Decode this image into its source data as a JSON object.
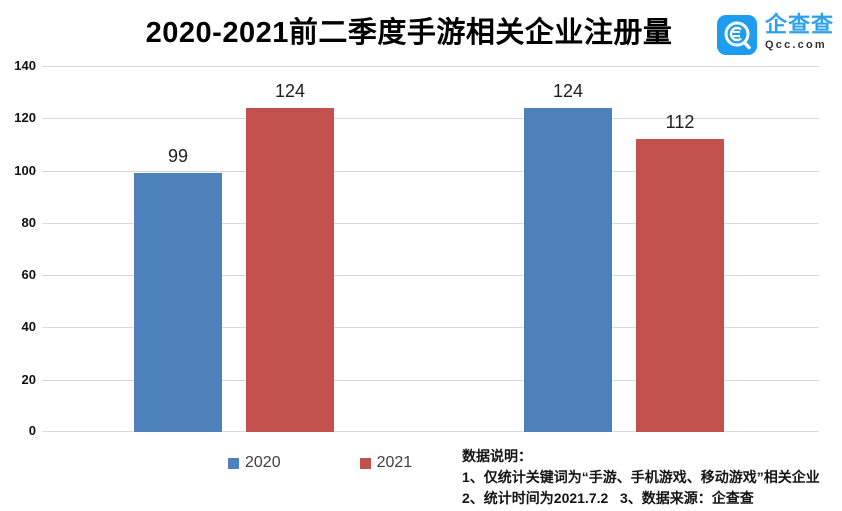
{
  "title": "2020-2021前二季度手游相关企业注册量",
  "logo": {
    "name": "企查查",
    "domain": "Qcc.com",
    "icon": "qcc-logo-icon",
    "brand_color": "#1E9CF0"
  },
  "chart_data": {
    "type": "bar",
    "categories": [
      "",
      ""
    ],
    "series": [
      {
        "name": "2020",
        "color": "#4E81BC",
        "values": [
          99,
          124
        ]
      },
      {
        "name": "2021",
        "color": "#C2514E",
        "values": [
          124,
          112
        ]
      }
    ],
    "title": "2020-2021前二季度手游相关企业注册量",
    "xlabel": "",
    "ylabel": "",
    "ylim": [
      0,
      140
    ],
    "ytick_step": 20,
    "yticks": [
      0,
      20,
      40,
      60,
      80,
      100,
      120,
      140
    ],
    "grid": true,
    "gridline_color": "#D9D9D9",
    "legend_position": "bottom",
    "value_labels": true
  },
  "annotation": {
    "heading": "数据说明：",
    "line1": "1、仅统计关键词为“手游、手机游戏、移动游戏”相关企业",
    "line2": "2、统计时间为2021.7.2   3、数据来源：企查查"
  }
}
